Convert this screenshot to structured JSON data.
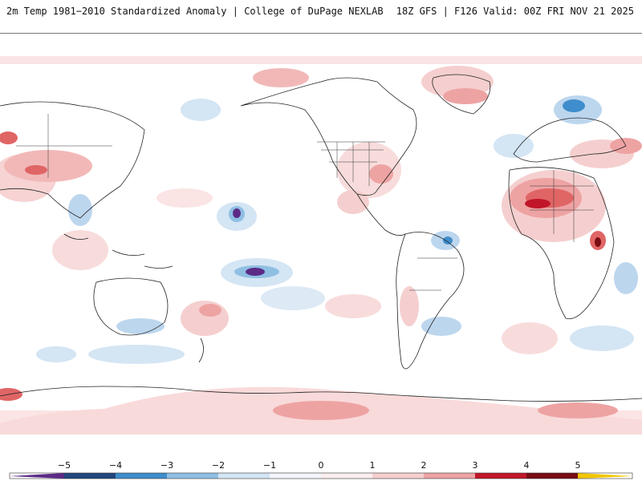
{
  "header": {
    "title": "2m Temp 1981−2010 Standardized Anomaly | College of DuPage NEXLAB",
    "run_info": "18Z GFS | F126 Valid: 00Z FRI NOV 21 2025"
  },
  "colors": {
    "neg5": "#5b2a86",
    "neg4": "#23467e",
    "neg3": "#3f8dcc",
    "neg2": "#8fbfe3",
    "neg1": "#d4e5f4",
    "zero_lo": "#f2f6fb",
    "zero_hi": "#fbeeee",
    "pos1": "#f5cfcf",
    "pos2": "#eea3a3",
    "pos3": "#e06565",
    "pos4": "#c1162a",
    "pos5": "#7a0c14",
    "extreme": "#f2c600"
  },
  "legend": {
    "ticks": [
      "−5",
      "−4",
      "−3",
      "−2",
      "−1",
      "0",
      "1",
      "2",
      "3",
      "4",
      "5"
    ]
  }
}
